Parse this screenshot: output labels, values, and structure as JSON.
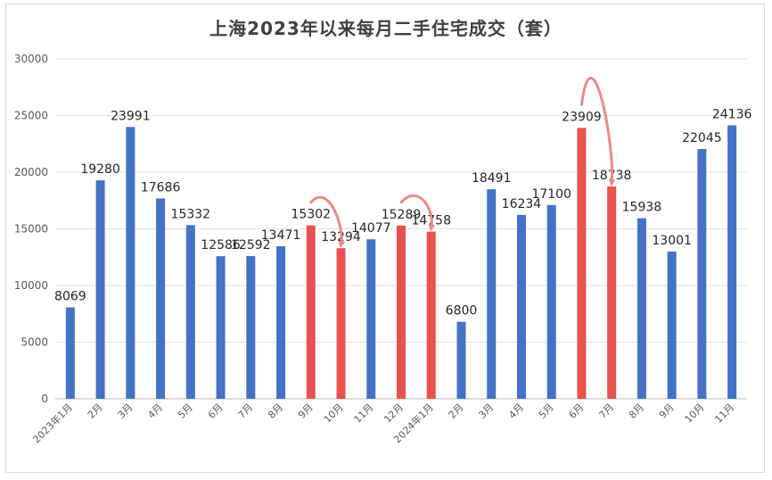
{
  "chart_data": {
    "type": "bar",
    "title": "上海2023年以来每月二手住宅成交（套）",
    "xlabel": "",
    "ylabel": "",
    "ylim": [
      0,
      30000
    ],
    "yticks": [
      0,
      5000,
      10000,
      15000,
      20000,
      25000,
      30000
    ],
    "grid": true,
    "categories": [
      "2023年1月",
      "2月",
      "3月",
      "4月",
      "5月",
      "6月",
      "7月",
      "8月",
      "9月",
      "10月",
      "11月",
      "12月",
      "2024年1月",
      "2月",
      "3月",
      "4月",
      "5月",
      "6月",
      "7月",
      "8月",
      "9月",
      "10月",
      "11月"
    ],
    "values": [
      8069,
      19280,
      23991,
      17686,
      15332,
      12586,
      12592,
      13471,
      15302,
      13294,
      14077,
      15289,
      14758,
      6800,
      18491,
      16234,
      17100,
      23909,
      18738,
      15938,
      13001,
      22045,
      24136
    ],
    "highlighted_indices": [
      8,
      9,
      11,
      12,
      17,
      18
    ],
    "colors": {
      "default": "#4472c4",
      "highlight": "#e8534f",
      "arrow": "#e98a86"
    }
  }
}
